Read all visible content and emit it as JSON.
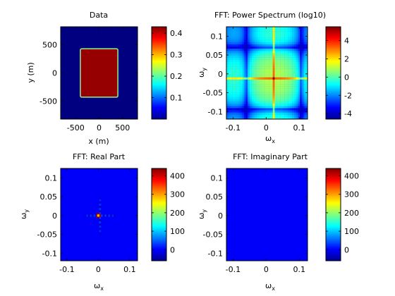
{
  "chart_data": [
    {
      "type": "heatmap",
      "title": "Data",
      "xlabel": "x (m)",
      "ylabel": "y (m)",
      "xlim": [
        -820,
        820
      ],
      "ylim": [
        -820,
        820
      ],
      "xticks": [
        "-500",
        "0",
        "500"
      ],
      "xtick_values": [
        -500,
        0,
        500
      ],
      "yticks": [
        "500",
        "0",
        "-500"
      ],
      "ytick_values": [
        500,
        0,
        -500
      ],
      "rect": {
        "xmin": -400,
        "xmax": 400,
        "ymin": -430,
        "ymax": 430,
        "value": 0.42,
        "background": 0.0
      },
      "colorbar": {
        "range": [
          0.0,
          0.43
        ],
        "ticks": [
          "0.4",
          "0.3",
          "0.2",
          "0.1"
        ],
        "tick_values": [
          0.4,
          0.3,
          0.2,
          0.1
        ]
      }
    },
    {
      "type": "heatmap",
      "title": "FFT: Power Spectrum (log10)",
      "xlabel": "ω",
      "xlabel_sub": "x",
      "ylabel": "ω",
      "ylabel_sub": "y",
      "xlim": [
        -0.12,
        0.125
      ],
      "ylim": [
        -0.12,
        0.125
      ],
      "xticks": [
        "-0.1",
        "0",
        "0.1"
      ],
      "xtick_values": [
        -0.1,
        0,
        0.1
      ],
      "yticks": [
        "0.1",
        "0.05",
        "0",
        "-0.05",
        "-0.1"
      ],
      "ytick_values": [
        0.1,
        0.05,
        0,
        -0.05,
        -0.1
      ],
      "colorbar": {
        "range": [
          -4.6,
          5.5
        ],
        "ticks": [
          "4",
          "2",
          "0",
          "-2",
          "-4"
        ],
        "tick_values": [
          4,
          2,
          0,
          -2,
          -4
        ]
      }
    },
    {
      "type": "heatmap",
      "title": "FFT: Real Part",
      "xlabel": "ω",
      "xlabel_sub": "x",
      "ylabel": "ω",
      "ylabel_sub": "y",
      "xlim": [
        -0.12,
        0.125
      ],
      "ylim": [
        -0.12,
        0.125
      ],
      "xticks": [
        "-0.1",
        "0",
        "0.1"
      ],
      "xtick_values": [
        -0.1,
        0,
        0.1
      ],
      "yticks": [
        "0.1",
        "0.05",
        "0",
        "-0.05",
        "-0.1"
      ],
      "ytick_values": [
        0.1,
        0.05,
        0,
        -0.05,
        -0.1
      ],
      "peak": {
        "x": 0,
        "y": 0,
        "value": 420
      },
      "colorbar": {
        "range": [
          -60,
          440
        ],
        "ticks": [
          "400",
          "300",
          "200",
          "100",
          "0"
        ],
        "tick_values": [
          400,
          300,
          200,
          100,
          0
        ]
      }
    },
    {
      "type": "heatmap",
      "title": "FFT: Imaginary Part",
      "xlabel": "ω",
      "xlabel_sub": "x",
      "ylabel": "ω",
      "ylabel_sub": "y",
      "xlim": [
        -0.12,
        0.125
      ],
      "ylim": [
        -0.12,
        0.125
      ],
      "xticks": [
        "-0.1",
        "0",
        "0.1"
      ],
      "xtick_values": [
        -0.1,
        0,
        0.1
      ],
      "yticks": [
        "0.1",
        "0.05",
        "0",
        "-0.05",
        "-0.1"
      ],
      "ytick_values": [
        0.1,
        0.05,
        0,
        -0.05,
        -0.1
      ],
      "uniform_value": 0,
      "colorbar": {
        "range": [
          -60,
          440
        ],
        "ticks": [
          "400",
          "300",
          "200",
          "100",
          "0"
        ],
        "tick_values": [
          400,
          300,
          200,
          100,
          0
        ]
      }
    }
  ]
}
